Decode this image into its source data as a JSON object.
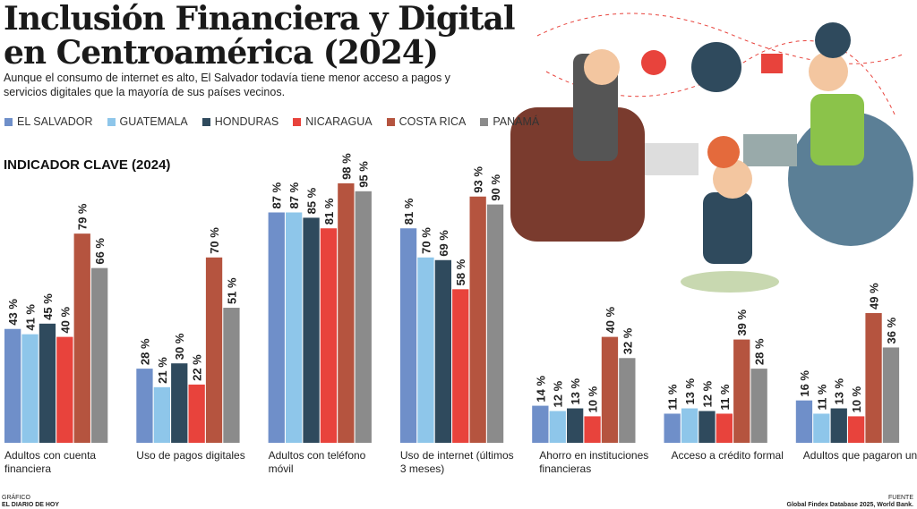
{
  "chart_data": {
    "type": "bar",
    "title": [
      "Inclusión Financiera y Digital",
      "en Centroamérica (2024)"
    ],
    "subtitle": [
      "Aunque el consumo de internet es alto, El Salvador todavía tiene menor acceso a pagos y",
      "servicios digitales que la mayoría de sus países vecinos."
    ],
    "section_label": "INDICADOR CLAVE (2024)",
    "categories": [
      "Adultos con cuenta financiera",
      "Uso de pagos digitales",
      "Adultos con teléfono móvil",
      "Uso de internet (últimos 3 meses)",
      "Ahorro en instituciones financieras",
      "Acceso a crédito formal",
      "Adultos que pagaron una"
    ],
    "ylim": [
      0,
      100
    ],
    "series": [
      {
        "name": "EL SALVADOR",
        "color": "#6f8fc9",
        "values": [
          43,
          28,
          87,
          81,
          14,
          11,
          16
        ],
        "value_labels": [
          "43 %",
          "28 %",
          "87 %",
          "81 %",
          "14 %",
          "11 %",
          "16 %"
        ]
      },
      {
        "name": "GUATEMALA",
        "color": "#8ec6ea",
        "values": [
          41,
          21,
          87,
          70,
          12,
          13,
          11
        ],
        "value_labels": [
          "41 %",
          "21 %",
          "87 %",
          "70 %",
          "12 %",
          "13 %",
          "11 %"
        ]
      },
      {
        "name": "HONDURAS",
        "color": "#2f4a5d",
        "values": [
          45,
          30,
          85,
          69,
          13,
          12,
          13
        ],
        "value_labels": [
          "45 %",
          "30 %",
          "85 %",
          "69 %",
          "13 %",
          "12 %",
          "13 %"
        ]
      },
      {
        "name": "NICARAGUA",
        "color": "#e8433c",
        "values": [
          40,
          22,
          81,
          58,
          10,
          11,
          10
        ],
        "value_labels": [
          "40 %",
          "22 %",
          "81 %",
          "58 %",
          "10 %",
          "11 %",
          "10 %"
        ]
      },
      {
        "name": "COSTA RICA",
        "color": "#b5543f",
        "values": [
          79,
          70,
          98,
          93,
          40,
          39,
          49
        ],
        "value_labels": [
          "79 %",
          "70 %",
          "98 %",
          "93 %",
          "40 %",
          "39 %",
          "49 %"
        ]
      },
      {
        "name": "PANAMÁ",
        "color": "#8b8b8b",
        "values": [
          66,
          51,
          95,
          90,
          32,
          28,
          36
        ],
        "value_labels": [
          "66 %",
          "51 %",
          "95 %",
          "90 %",
          "32 %",
          "28 %",
          "36 %"
        ]
      }
    ],
    "footer": {
      "credit_label": "GRÁFICO",
      "credit": "EL DIARIO DE HOY",
      "source_label": "FUENTE",
      "source": "Global Findex Database 2025, World Bank."
    }
  }
}
